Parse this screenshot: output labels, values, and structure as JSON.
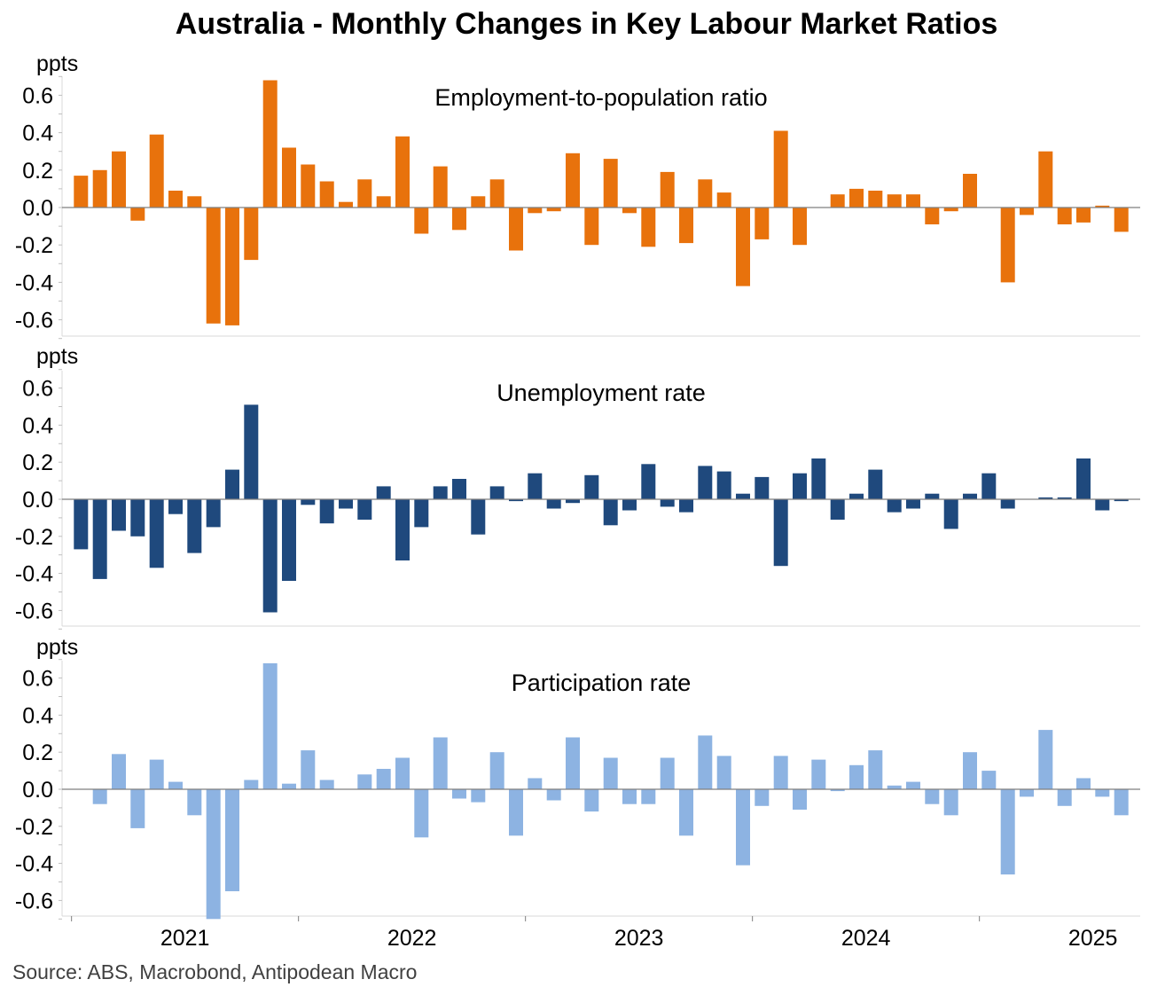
{
  "title": "Australia - Monthly Changes in Key Labour Market Ratios",
  "source": "Source: ABS, Macrobond, Antipodean Macro",
  "chart_data": [
    {
      "type": "bar",
      "title": "Employment-to-population ratio",
      "ylabel": "ppts",
      "color": "#E8720C",
      "ylim": [
        -0.7,
        0.7
      ],
      "yticks": [
        -0.6,
        -0.4,
        -0.2,
        0.0,
        0.2,
        0.4,
        0.6
      ],
      "ytick_labels": [
        "-0.6",
        "-0.4",
        "-0.2",
        "0.0",
        "0.2",
        "0.4",
        "0.6"
      ],
      "values": [
        0.17,
        0.2,
        0.3,
        -0.07,
        0.39,
        0.09,
        0.06,
        -0.62,
        -0.63,
        -0.28,
        0.68,
        0.32,
        0.23,
        0.14,
        0.03,
        0.15,
        0.06,
        0.38,
        -0.14,
        0.22,
        -0.12,
        0.06,
        0.15,
        -0.23,
        -0.03,
        -0.02,
        0.29,
        -0.2,
        0.26,
        -0.03,
        -0.21,
        0.19,
        -0.19,
        0.15,
        0.08,
        -0.42,
        -0.17,
        0.41,
        -0.2,
        0.0,
        0.07,
        0.1,
        0.09,
        0.07,
        0.07,
        -0.09,
        -0.02,
        0.18,
        0.0,
        -0.4,
        -0.04,
        0.3,
        -0.09,
        -0.08,
        0.01,
        -0.13
      ]
    },
    {
      "type": "bar",
      "title": "Unemployment rate",
      "ylabel": "ppts",
      "color": "#1F497D",
      "ylim": [
        -0.7,
        0.7
      ],
      "yticks": [
        -0.6,
        -0.4,
        -0.2,
        0.0,
        0.2,
        0.4,
        0.6
      ],
      "ytick_labels": [
        "-0.6",
        "-0.4",
        "-0.2",
        "0.0",
        "0.2",
        "0.4",
        "0.6"
      ],
      "values": [
        -0.27,
        -0.43,
        -0.17,
        -0.2,
        -0.37,
        -0.08,
        -0.29,
        -0.15,
        0.16,
        0.51,
        -0.61,
        -0.44,
        -0.03,
        -0.13,
        -0.05,
        -0.11,
        0.07,
        -0.33,
        -0.15,
        0.07,
        0.11,
        -0.19,
        0.07,
        -0.01,
        0.14,
        -0.05,
        -0.02,
        0.13,
        -0.14,
        -0.06,
        0.19,
        -0.04,
        -0.07,
        0.18,
        0.15,
        0.03,
        0.12,
        -0.36,
        0.14,
        0.22,
        -0.11,
        0.03,
        0.16,
        -0.07,
        -0.05,
        0.03,
        -0.16,
        0.03,
        0.14,
        -0.05,
        0.0,
        0.01,
        0.01,
        0.22,
        -0.06,
        -0.01
      ]
    },
    {
      "type": "bar",
      "title": "Participation rate",
      "ylabel": "ppts",
      "color": "#8DB3E2",
      "ylim": [
        -0.7,
        0.7
      ],
      "yticks": [
        -0.6,
        -0.4,
        -0.2,
        0.0,
        0.2,
        0.4,
        0.6
      ],
      "ytick_labels": [
        "-0.6",
        "-0.4",
        "-0.2",
        "0.0",
        "0.2",
        "0.4",
        "0.6"
      ],
      "x_tick_labels": [
        "2021",
        "2022",
        "2023",
        "2024",
        "2025"
      ],
      "values": [
        0.0,
        -0.08,
        0.19,
        -0.21,
        0.16,
        0.04,
        -0.14,
        -0.7,
        -0.55,
        0.05,
        0.68,
        0.03,
        0.21,
        0.05,
        0.0,
        0.08,
        0.11,
        0.17,
        -0.26,
        0.28,
        -0.05,
        -0.07,
        0.2,
        -0.25,
        0.06,
        -0.06,
        0.28,
        -0.12,
        0.17,
        -0.08,
        -0.08,
        0.17,
        -0.25,
        0.29,
        0.18,
        -0.41,
        -0.09,
        0.18,
        -0.11,
        0.16,
        -0.01,
        0.13,
        0.21,
        0.02,
        0.04,
        -0.08,
        -0.14,
        0.2,
        0.1,
        -0.46,
        -0.04,
        0.32,
        -0.09,
        0.06,
        -0.04,
        -0.14
      ]
    }
  ]
}
